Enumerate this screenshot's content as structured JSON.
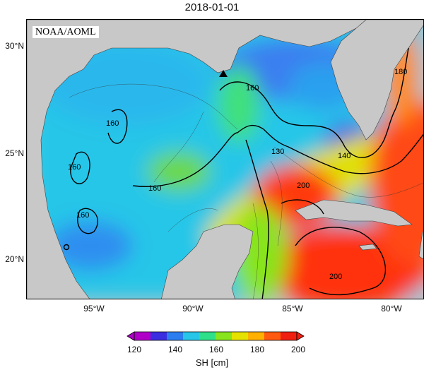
{
  "title": "2018-01-01",
  "source_label": "NOAA/AOML",
  "lat_labels": [
    "30°N",
    "25°N",
    "20°N"
  ],
  "lon_labels": [
    "95°W",
    "90°W",
    "85°W",
    "80°W"
  ],
  "contour_labels": [
    "180",
    "160",
    "130",
    "140",
    "200",
    "160",
    "160",
    "160",
    "200",
    "160"
  ],
  "colorbar": {
    "ticks": [
      "120",
      "140",
      "160",
      "180",
      "200"
    ],
    "label": "SH [cm]",
    "colors": [
      "#b000c8",
      "#3b2ee0",
      "#2c7ef0",
      "#27c6e8",
      "#2fe08a",
      "#88e41d",
      "#e6e200",
      "#ffb000",
      "#ff5a10",
      "#f02010"
    ]
  },
  "map": {
    "land_color": "#c8c8c8",
    "marker": "triangle"
  }
}
